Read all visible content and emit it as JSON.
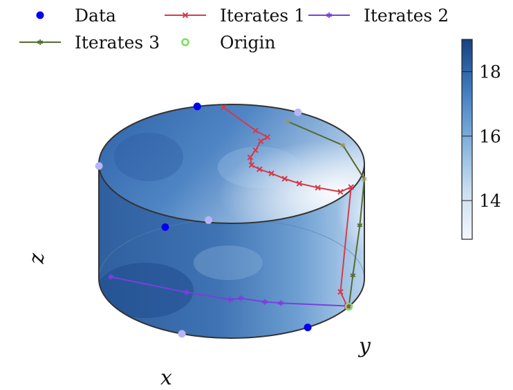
{
  "chart_data": {
    "type": "scatter",
    "subtype": "3d-cylinder-surface",
    "title": "",
    "axes": {
      "x_label": "x",
      "y_label": "y",
      "z_label": "z"
    },
    "legend": {
      "placement": "top",
      "entries": [
        {
          "name": "Data",
          "marker": "dot",
          "color": "#0000ee"
        },
        {
          "name": "Iterates 1",
          "marker": "x",
          "color": "#d43b4a"
        },
        {
          "name": "Iterates 2",
          "marker": "star",
          "color": "#7b3fdc"
        },
        {
          "name": "Iterates 3",
          "marker": "star",
          "color": "#556b2f"
        },
        {
          "name": "Origin",
          "marker": "ring",
          "color": "#7ae05b"
        }
      ]
    },
    "colorbar": {
      "range": [
        12.8,
        19.0
      ],
      "ticks": [
        14,
        16,
        18
      ],
      "colormap": [
        "#f4f8fd",
        "#c9ddf0",
        "#7fb0dc",
        "#3f7bbf",
        "#17427f"
      ]
    },
    "cylinder": {
      "radius": 1,
      "z_range": [
        0,
        1
      ]
    },
    "series": [
      {
        "name": "Data",
        "points": [
          {
            "theta": 255,
            "z": 1.0,
            "side": "front"
          },
          {
            "theta": 300,
            "z": 1.0,
            "side": "back"
          },
          {
            "theta": 178,
            "z": 1.0,
            "side": "back"
          },
          {
            "theta": 260,
            "z": 0.0,
            "side": "back"
          },
          {
            "theta": 112,
            "z": 0.0,
            "side": "back"
          },
          {
            "theta": 240,
            "z": 0.0,
            "side": "back"
          },
          {
            "theta": 55,
            "z": 0.0,
            "side": "front"
          },
          {
            "theta": 240,
            "z": 0.0,
            "side": "front"
          }
        ]
      },
      {
        "name": "Iterates 1",
        "points": [
          [
            -0.06,
            -0.95,
            1.0
          ],
          [
            0.18,
            -0.56,
            1.0
          ],
          [
            0.27,
            -0.45,
            1.0
          ],
          [
            0.22,
            -0.38,
            1.0
          ],
          [
            0.18,
            -0.23,
            1.0
          ],
          [
            0.14,
            -0.11,
            1.0
          ],
          [
            0.15,
            0.02,
            1.0
          ],
          [
            0.21,
            0.09,
            1.0
          ],
          [
            0.3,
            0.16,
            1.0
          ],
          [
            0.4,
            0.25,
            1.0
          ],
          [
            0.51,
            0.33,
            1.0
          ],
          [
            0.65,
            0.4,
            1.0
          ],
          [
            0.82,
            0.47,
            1.0
          ],
          [
            0.9,
            0.39,
            1.0
          ],
          [
            0.82,
            0.57,
            0.18
          ],
          [
            0.87,
            0.46,
            0.0
          ]
        ]
      },
      {
        "name": "Iterates 2",
        "points": [
          [
            0.87,
            0.46,
            0.0
          ],
          [
            0.37,
            0.41,
            0.0
          ],
          [
            0.25,
            0.39,
            0.0
          ],
          [
            0.07,
            0.33,
            0.0
          ],
          [
            -0.01,
            0.35,
            0.0
          ],
          [
            -0.34,
            0.23,
            0.0
          ],
          [
            -0.91,
            -0.03,
            0.0
          ]
        ]
      },
      {
        "name": "Iterates 3",
        "points": [
          {
            "theta": 28,
            "z": 0.0
          },
          {
            "theta": 24,
            "z": 0.24
          },
          {
            "theta": 15,
            "z": 0.6
          },
          {
            "theta": -2,
            "z": 0.85
          },
          {
            "theta": -33,
            "z": 0.88
          },
          {
            "theta": -65,
            "z": 0.9
          }
        ]
      },
      {
        "name": "Origin",
        "points": [
          {
            "theta": 28,
            "z": 0.0
          }
        ]
      }
    ]
  }
}
